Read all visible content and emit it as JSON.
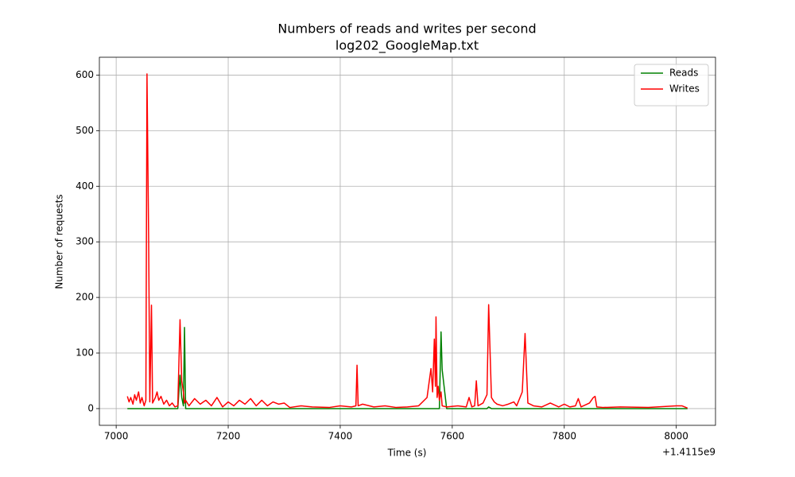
{
  "chart_data": {
    "type": "line",
    "title": "Numbers of reads and writes per second",
    "subtitle": "log202_GoogleMap.txt",
    "x_label": "Time (s)",
    "y_label": "Number of requests",
    "x_offset_label": "+1.4115e9",
    "xlim": [
      6970,
      8070
    ],
    "xticks": [
      7000,
      7200,
      7400,
      7600,
      7800,
      8000
    ],
    "ylim": [
      -30.1,
      632.1
    ],
    "yticks": [
      0,
      100,
      200,
      300,
      400,
      500,
      600
    ],
    "grid": true,
    "legend": "upper right",
    "x": [
      7020,
      7023,
      7026,
      7030,
      7033,
      7036,
      7040,
      7043,
      7046,
      7050,
      7053,
      7055,
      7058,
      7060,
      7063,
      7065,
      7070,
      7073,
      7076,
      7080,
      7085,
      7090,
      7095,
      7100,
      7105,
      7110,
      7114,
      7117,
      7120,
      7122,
      7124,
      7130,
      7140,
      7150,
      7160,
      7170,
      7180,
      7190,
      7200,
      7210,
      7220,
      7230,
      7240,
      7250,
      7260,
      7270,
      7280,
      7290,
      7300,
      7310,
      7330,
      7350,
      7380,
      7400,
      7420,
      7428,
      7430,
      7432,
      7440,
      7460,
      7480,
      7500,
      7520,
      7540,
      7555,
      7562,
      7565,
      7568,
      7570,
      7571,
      7573,
      7575,
      7577,
      7580,
      7582,
      7590,
      7610,
      7625,
      7630,
      7635,
      7640,
      7643,
      7646,
      7655,
      7662,
      7665,
      7670,
      7675,
      7680,
      7690,
      7700,
      7710,
      7715,
      7725,
      7730,
      7735,
      7745,
      7760,
      7775,
      7790,
      7800,
      7810,
      7820,
      7825,
      7830,
      7845,
      7852,
      7855,
      7858,
      7870,
      7900,
      7950,
      8000,
      8010,
      8020
    ],
    "series": [
      {
        "name": "Reads",
        "color": "#008000",
        "values": [
          0,
          0,
          0,
          0,
          0,
          0,
          0,
          0,
          0,
          0,
          0,
          0,
          0,
          0,
          0,
          0,
          0,
          0,
          0,
          0,
          0,
          0,
          0,
          0,
          0,
          0,
          60,
          20,
          5,
          146,
          0,
          0,
          0,
          0,
          0,
          0,
          0,
          0,
          0,
          0,
          0,
          0,
          0,
          0,
          0,
          0,
          0,
          0,
          0,
          0,
          0,
          0,
          0,
          0,
          0,
          0,
          0,
          0,
          0,
          0,
          0,
          0,
          0,
          0,
          0,
          0,
          0,
          0,
          0,
          0,
          0,
          0,
          0,
          138,
          70,
          0,
          0,
          0,
          0,
          0,
          0,
          0,
          0,
          0,
          0,
          3,
          0,
          0,
          0,
          0,
          0,
          0,
          0,
          0,
          0,
          0,
          0,
          0,
          0,
          0,
          0,
          0,
          0,
          0,
          0,
          0,
          0,
          0,
          0,
          0,
          0,
          0,
          0,
          0,
          0
        ]
      },
      {
        "name": "Writes",
        "color": "#ff0000",
        "values": [
          22,
          12,
          20,
          8,
          25,
          15,
          30,
          10,
          20,
          5,
          15,
          602,
          300,
          12,
          186,
          10,
          20,
          30,
          15,
          22,
          8,
          15,
          5,
          10,
          3,
          5,
          160,
          50,
          30,
          10,
          15,
          5,
          18,
          8,
          15,
          5,
          20,
          3,
          12,
          5,
          15,
          8,
          18,
          5,
          15,
          5,
          12,
          8,
          10,
          2,
          5,
          3,
          2,
          5,
          3,
          5,
          78,
          5,
          8,
          3,
          5,
          2,
          3,
          5,
          20,
          72,
          30,
          125,
          40,
          165,
          20,
          40,
          15,
          30,
          5,
          3,
          5,
          3,
          20,
          3,
          5,
          50,
          5,
          10,
          25,
          187,
          20,
          12,
          8,
          5,
          8,
          12,
          5,
          30,
          135,
          10,
          5,
          3,
          10,
          3,
          8,
          3,
          5,
          18,
          3,
          10,
          20,
          22,
          3,
          2,
          3,
          2,
          5,
          5,
          1
        ]
      }
    ]
  }
}
